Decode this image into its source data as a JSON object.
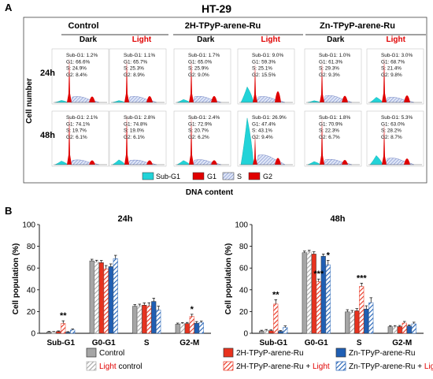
{
  "panel_a": {
    "label": "A",
    "title": "HT-29",
    "group_labels": [
      "Control",
      "2H-TPyP-arene-Ru",
      "Zn-TPyP-arene-Ru"
    ],
    "condition_labels": [
      "Dark",
      "Light"
    ],
    "row_labels": [
      "24h",
      "48h"
    ],
    "y_label": "Cell number",
    "x_label": "DNA content",
    "legend": [
      "Sub-G1",
      "G1",
      "S",
      "G2"
    ],
    "colors": {
      "subg1": "#22d3d8",
      "g1": "#e00000",
      "s_fill": "#b8c8ec",
      "s_stroke": "#5a6fb8",
      "g2": "#e00000",
      "light_text": "#e00000"
    },
    "stats": [
      [
        [
          "Sub-G1: 1.2%",
          "G1: 66.6%",
          "S: 24.9%",
          "G2: 8.4%"
        ],
        [
          "Sub-G1: 1.1%",
          "G1: 65.7%",
          "S: 25.3%",
          "G2: 8.9%"
        ],
        [
          "Sub-G1: 1.7%",
          "G1: 65.0%",
          "S: 25.9%",
          "G2: 9.0%"
        ],
        [
          "Sub-G1: 9.0%",
          "G1: 59.3%",
          "S: 25.1%",
          "G2: 15.5%"
        ],
        [
          "Sub-G1: 1.0%",
          "G1: 61.3%",
          "S: 29.3%",
          "G2: 9.3%"
        ],
        [
          "Sub-G1: 3.0%",
          "G1: 68.7%",
          "S: 21.4%",
          "G2: 9.8%"
        ]
      ],
      [
        [
          "Sub-G1: 2.1%",
          "G1: 74.1%",
          "S: 19.7%",
          "G2: 6.1%"
        ],
        [
          "Sub-G1: 2.8%",
          "G1: 74.8%",
          "S: 19.0%",
          "G2: 6.1%"
        ],
        [
          "Sub-G1: 2.4%",
          "G1: 72.9%",
          "S: 20.7%",
          "G2: 6.2%"
        ],
        [
          "Sub-G1: 26.9%",
          "G1: 47.4%",
          "S: 43.1%",
          "G2: 9.4%"
        ],
        [
          "Sub-G1: 1.8%",
          "G1: 70.9%",
          "S: 22.3%",
          "G2: 6.7%"
        ],
        [
          "Sub-G1: 5.3%",
          "G1: 63.0%",
          "S: 28.2%",
          "G2: 8.7%"
        ]
      ]
    ]
  },
  "panel_b_label": "B",
  "chart_data": [
    {
      "type": "bar",
      "title": "24h",
      "xlabel": "",
      "ylabel": "Cell population (%)",
      "ylim": [
        0,
        100
      ],
      "yticks": [
        0,
        20,
        40,
        60,
        80,
        100
      ],
      "categories": [
        "Sub-G1",
        "G0-G1",
        "S",
        "G2-M"
      ],
      "series": [
        {
          "name": "Control",
          "values": [
            1.2,
            66.6,
            24.9,
            8.4
          ],
          "errors": [
            0.5,
            1.5,
            1.5,
            1.0
          ]
        },
        {
          "name": "Light control",
          "values": [
            1.1,
            65.7,
            25.3,
            8.9
          ],
          "errors": [
            0.5,
            1.5,
            1.5,
            1.0
          ]
        },
        {
          "name": "2H-TPyP-arene-Ru",
          "values": [
            1.7,
            65.0,
            25.9,
            9.0
          ],
          "errors": [
            0.5,
            2.0,
            2.0,
            1.0
          ]
        },
        {
          "name": "2H-TPyP-arene-Ru + Light",
          "values": [
            9.0,
            59.3,
            25.1,
            15.5
          ],
          "errors": [
            2.5,
            3.0,
            3.0,
            2.0
          ]
        },
        {
          "name": "Zn-TPyP-arene-Ru",
          "values": [
            1.0,
            61.3,
            29.3,
            9.3
          ],
          "errors": [
            0.5,
            2.5,
            3.0,
            1.5
          ]
        },
        {
          "name": "Zn-TPyP-arene-Ru + Light",
          "values": [
            3.0,
            68.7,
            21.4,
            9.8
          ],
          "errors": [
            1.0,
            3.0,
            3.5,
            1.5
          ]
        }
      ],
      "annotations": [
        {
          "category": "Sub-G1",
          "series": 3,
          "text": "**"
        },
        {
          "category": "G2-M",
          "series": 3,
          "text": "*"
        }
      ]
    },
    {
      "type": "bar",
      "title": "48h",
      "xlabel": "",
      "ylabel": "Cell population (%)",
      "ylim": [
        0,
        100
      ],
      "yticks": [
        0,
        20,
        40,
        60,
        80,
        100
      ],
      "categories": [
        "Sub-G1",
        "G0-G1",
        "S",
        "G2-M"
      ],
      "series": [
        {
          "name": "Control",
          "values": [
            2.1,
            74.1,
            19.7,
            6.1
          ],
          "errors": [
            0.7,
            1.5,
            2.0,
            1.0
          ]
        },
        {
          "name": "Light control",
          "values": [
            2.8,
            74.8,
            19.0,
            6.1
          ],
          "errors": [
            0.7,
            1.5,
            2.0,
            1.0
          ]
        },
        {
          "name": "2H-TPyP-arene-Ru",
          "values": [
            2.4,
            72.9,
            20.7,
            6.2
          ],
          "errors": [
            0.7,
            2.0,
            2.0,
            1.0
          ]
        },
        {
          "name": "2H-TPyP-arene-Ru + Light",
          "values": [
            26.9,
            47.4,
            43.1,
            9.4
          ],
          "errors": [
            4.0,
            2.5,
            3.0,
            1.5
          ]
        },
        {
          "name": "Zn-TPyP-arene-Ru",
          "values": [
            1.8,
            70.9,
            22.3,
            6.7
          ],
          "errors": [
            0.7,
            2.0,
            3.0,
            1.0
          ]
        },
        {
          "name": "Zn-TPyP-arene-Ru + Light",
          "values": [
            5.3,
            63.0,
            28.2,
            8.7
          ],
          "errors": [
            1.5,
            4.0,
            4.5,
            1.5
          ]
        }
      ],
      "annotations": [
        {
          "category": "Sub-G1",
          "series": 3,
          "text": "**"
        },
        {
          "category": "G0-G1",
          "series": 3,
          "text": "***"
        },
        {
          "category": "G0-G1",
          "series": 5,
          "text": "*"
        },
        {
          "category": "S",
          "series": 3,
          "text": "***"
        }
      ]
    }
  ],
  "legend_b": [
    {
      "text": "Control",
      "light": "",
      "fill": "#a6a6a6",
      "hatch": false
    },
    {
      "text": "2H-TPyP-arene-Ru",
      "light": "",
      "fill": "#e8321e",
      "hatch": false
    },
    {
      "text": "Zn-TPyP-arene-Ru",
      "light": "",
      "fill": "#1f5fb4",
      "hatch": false
    },
    {
      "text": "control",
      "light": "Light",
      "light_first": true,
      "fill": "#a6a6a6",
      "hatch": true
    },
    {
      "text": "2H-TPyP-arene-Ru + ",
      "light": "Light",
      "light_first": false,
      "fill": "#e8321e",
      "hatch": true
    },
    {
      "text": "Zn-TPyP-arene-Ru + ",
      "light": "Light",
      "light_first": false,
      "fill": "#1f5fb4",
      "hatch": true
    }
  ],
  "bar_colors": [
    "#a6a6a6",
    "#a6a6a6",
    "#e8321e",
    "#e8321e",
    "#1f5fb4",
    "#1f5fb4"
  ],
  "bar_hatched": [
    false,
    true,
    false,
    true,
    false,
    true
  ]
}
